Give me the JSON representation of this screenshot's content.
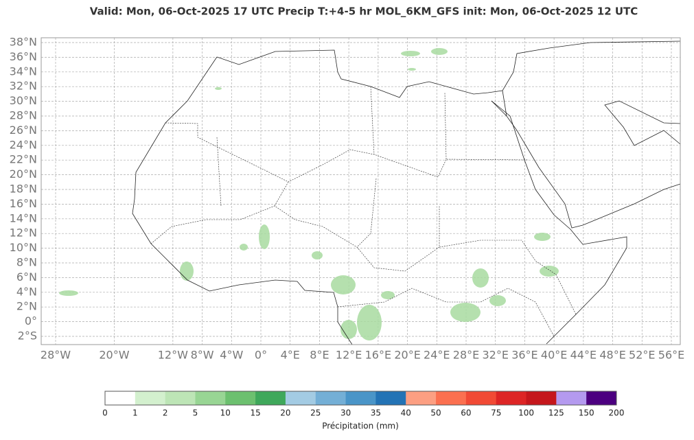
{
  "title": "Valid: Mon, 06-Oct-2025   17 UTC   Precip   T:+4-5 hr   MOL_6KM_GFS      init: Mon, 06-Oct-2025   12 UTC",
  "map": {
    "lat_ticks": [
      {
        "value": 38,
        "label": "38°N"
      },
      {
        "value": 36,
        "label": "36°N"
      },
      {
        "value": 34,
        "label": "34°N"
      },
      {
        "value": 32,
        "label": "32°N"
      },
      {
        "value": 30,
        "label": "30°N"
      },
      {
        "value": 28,
        "label": "28°N"
      },
      {
        "value": 26,
        "label": "26°N"
      },
      {
        "value": 24,
        "label": "24°N"
      },
      {
        "value": 22,
        "label": "22°N"
      },
      {
        "value": 20,
        "label": "20°N"
      },
      {
        "value": 18,
        "label": "18°N"
      },
      {
        "value": 16,
        "label": "16°N"
      },
      {
        "value": 14,
        "label": "14°N"
      },
      {
        "value": 12,
        "label": "12°N"
      },
      {
        "value": 10,
        "label": "10°N"
      },
      {
        "value": 8,
        "label": "8°N"
      },
      {
        "value": 6,
        "label": "6°N"
      },
      {
        "value": 4,
        "label": "4°N"
      },
      {
        "value": 2,
        "label": "2°N"
      },
      {
        "value": 0,
        "label": "0°"
      },
      {
        "value": -2,
        "label": "2°S"
      }
    ],
    "lon_ticks": [
      {
        "value": -28,
        "label": "28°W"
      },
      {
        "value": -20,
        "label": "20°W"
      },
      {
        "value": -12,
        "label": "12°W"
      },
      {
        "value": -8,
        "label": "8°W"
      },
      {
        "value": -4,
        "label": "4°W"
      },
      {
        "value": 0,
        "label": "0°"
      },
      {
        "value": 4,
        "label": "4°E"
      },
      {
        "value": 8,
        "label": "8°E"
      },
      {
        "value": 12,
        "label": "12°E"
      },
      {
        "value": 16,
        "label": "16°E"
      },
      {
        "value": 20,
        "label": "20°E"
      },
      {
        "value": 24,
        "label": "24°E"
      },
      {
        "value": 28,
        "label": "28°E"
      },
      {
        "value": 32,
        "label": "32°E"
      },
      {
        "value": 36,
        "label": "36°E"
      },
      {
        "value": 40,
        "label": "40°E"
      },
      {
        "value": 44,
        "label": "44°E"
      },
      {
        "value": 48,
        "label": "48°E"
      },
      {
        "value": 52,
        "label": "52°E"
      },
      {
        "value": 56,
        "label": "56°E"
      }
    ]
  },
  "colorbar": {
    "label": "Précipitation (mm)",
    "bounds": [
      0,
      1,
      2,
      5,
      10,
      15,
      20,
      25,
      30,
      35,
      40,
      50,
      60,
      75,
      100,
      125,
      150,
      200
    ],
    "colors": [
      "#ffffff",
      "#d3f0ce",
      "#bde5b6",
      "#98d594",
      "#6cc06f",
      "#3fa85b",
      "#a3cbe3",
      "#74afd6",
      "#4a95c8",
      "#2373b5",
      "#fc9f82",
      "#fb7050",
      "#f14a35",
      "#dd2525",
      "#c5171c",
      "#b49aef",
      "#4c0080"
    ]
  }
}
